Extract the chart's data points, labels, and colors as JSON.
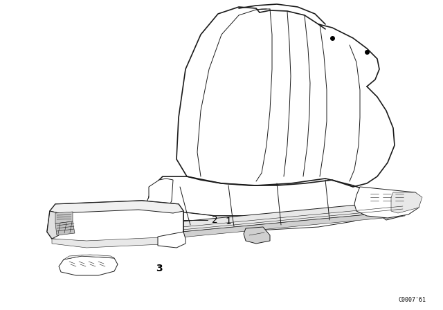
{
  "background_color": "#ffffff",
  "fig_width": 6.4,
  "fig_height": 4.48,
  "dpi": 100,
  "diagram_code_text": "C0007’61",
  "code_fontsize": 6,
  "label_1": "1",
  "label_2": "2",
  "label_3": "3",
  "label_fontsize": 10,
  "line_color": "#1a1a1a",
  "lw_main": 1.2,
  "lw_thin": 0.7,
  "lw_fine": 0.4
}
